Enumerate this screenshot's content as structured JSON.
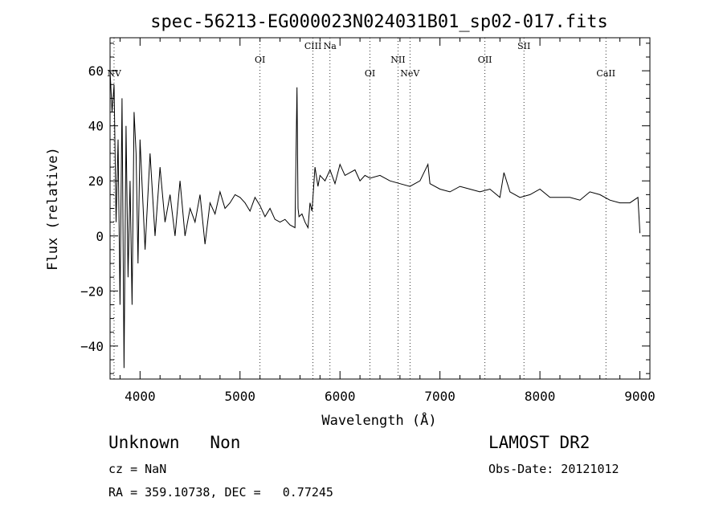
{
  "chart_data": {
    "type": "line",
    "title": "spec-56213-EG000023N024031B01_sp02-017.fits",
    "xlabel": "Wavelength (Å)",
    "ylabel": "Flux (relative)",
    "xlim": [
      3700,
      9100
    ],
    "ylim": [
      -52,
      72
    ],
    "x_ticks": [
      4000,
      5000,
      6000,
      7000,
      8000,
      9000
    ],
    "x_tick_labels": [
      "4000",
      "5000",
      "6000",
      "7000",
      "8000",
      "9000"
    ],
    "y_ticks": [
      -40,
      -20,
      0,
      20,
      40,
      60
    ],
    "y_tick_labels": [
      "−40",
      "−20",
      "0",
      "20",
      "40",
      "60"
    ],
    "grid": false,
    "series": [
      {
        "x": [
          3700,
          3720,
          3740,
          3760,
          3780,
          3800,
          3820,
          3840,
          3860,
          3880,
          3900,
          3920,
          3940,
          3960,
          3980,
          4000,
          4050,
          4100,
          4150,
          4200,
          4250,
          4300,
          4350,
          4400,
          4450,
          4500,
          4550,
          4600,
          4650,
          4700,
          4750,
          4800,
          4850,
          4900,
          4950,
          5000,
          5050,
          5100,
          5150,
          5200,
          5250,
          5300,
          5350,
          5400,
          5450,
          5500,
          5550,
          5570,
          5580,
          5590,
          5620,
          5650,
          5680,
          5700,
          5720,
          5750,
          5780,
          5800,
          5850,
          5900,
          5950,
          6000,
          6050,
          6100,
          6150,
          6200,
          6250,
          6300,
          6400,
          6500,
          6600,
          6700,
          6800,
          6880,
          6900,
          7000,
          7100,
          7200,
          7300,
          7400,
          7500,
          7600,
          7640,
          7700,
          7800,
          7900,
          8000,
          8100,
          8200,
          8300,
          8400,
          8500,
          8600,
          8700,
          8800,
          8900,
          8980,
          9000
        ],
        "y": [
          60,
          45,
          55,
          5,
          35,
          -25,
          50,
          -48,
          40,
          -15,
          20,
          -25,
          45,
          30,
          -10,
          35,
          -5,
          30,
          0,
          25,
          5,
          15,
          0,
          20,
          0,
          10,
          5,
          15,
          -3,
          12,
          8,
          16,
          10,
          12,
          15,
          14,
          12,
          9,
          14,
          11,
          7,
          10,
          6,
          5,
          6,
          4,
          3,
          54,
          10,
          7,
          8,
          5,
          3,
          12,
          9,
          25,
          18,
          22,
          20,
          24,
          19,
          26,
          22,
          23,
          24,
          20,
          22,
          21,
          22,
          20,
          19,
          18,
          20,
          26,
          19,
          17,
          16,
          18,
          17,
          16,
          17,
          14,
          23,
          16,
          14,
          15,
          17,
          14,
          14,
          14,
          13,
          16,
          15,
          13,
          12,
          12,
          14,
          1
        ]
      }
    ],
    "annotations": [
      {
        "label": "NV",
        "x": 3740,
        "y_rank": 3
      },
      {
        "label": "OI",
        "x": 5200,
        "y_rank": 2
      },
      {
        "label": "CIII",
        "x": 5730,
        "y_rank": 1
      },
      {
        "label": "Na",
        "x": 5900,
        "y_rank": 1
      },
      {
        "label": "OI",
        "x": 6300,
        "y_rank": 3
      },
      {
        "label": "NII",
        "x": 6580,
        "y_rank": 2
      },
      {
        "label": "NeV",
        "x": 6700,
        "y_rank": 3
      },
      {
        "label": "OII",
        "x": 7450,
        "y_rank": 2
      },
      {
        "label": "SII",
        "x": 7840,
        "y_rank": 1
      },
      {
        "label": "CaII",
        "x": 8660,
        "y_rank": 3
      }
    ]
  },
  "info": {
    "class_text": "Unknown   Non",
    "survey": "LAMOST DR2",
    "cz_text": "cz = NaN",
    "obs_date": "Obs-Date: 20121012",
    "radec": "RA = 359.10738, DEC =   0.77245"
  }
}
